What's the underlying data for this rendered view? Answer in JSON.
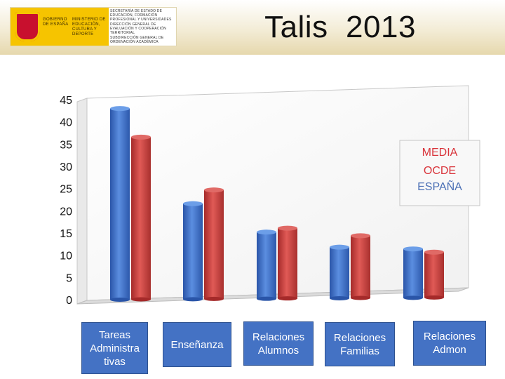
{
  "title": "Talis  2013",
  "logo": {
    "gov_text": "GOBIERNO DE ESPAÑA",
    "ministry_text": "MINISTERIO DE EDUCACIÓN, CULTURA Y DEPORTE",
    "sub_lines": [
      "SECRETARÍA DE ESTADO DE EDUCACIÓN, FORMACIÓN PROFESIONAL Y UNIVERSIDADES",
      "DIRECCIÓN GENERAL DE EVALUACIÓN Y COOPERACIÓN TERRITORIAL",
      "SUBDIRECCIÓN GENERAL DE ORDENACIÓN ACADÉMICA"
    ]
  },
  "colors": {
    "oecd": "#3a6fc4",
    "spain": "#c9403e",
    "category_box": "#4472c4"
  },
  "chart_data": {
    "type": "bar",
    "categories": [
      "Tareas Administra tivas",
      "Enseñanza",
      "Relaciones Alumnos",
      "Relaciones Familias",
      "Relaciones Admon"
    ],
    "series": [
      {
        "name": "MEDIA OCDE",
        "values": [
          43,
          21.5,
          15,
          11.5,
          11
        ]
      },
      {
        "name": "ESPAÑA",
        "values": [
          36.5,
          24.5,
          15.8,
          14,
          10.2
        ]
      }
    ],
    "y_ticks": [
      0,
      5,
      10,
      15,
      20,
      25,
      30,
      35,
      40,
      45
    ],
    "ylim": [
      0,
      45
    ],
    "grid": false,
    "legend_position": "right",
    "legend_lines": [
      "MEDIA",
      "OCDE",
      "ESPAÑA"
    ]
  }
}
